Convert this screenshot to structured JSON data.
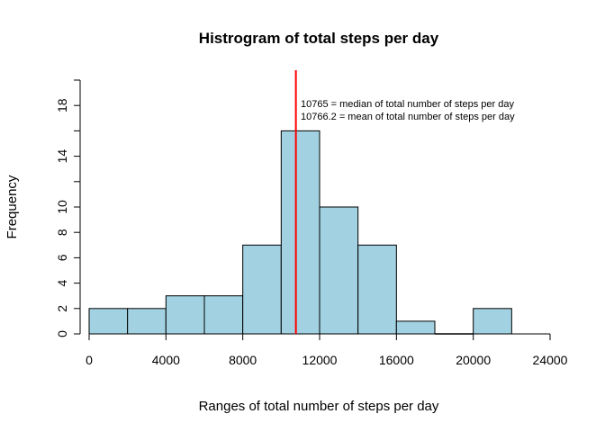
{
  "chart_data": {
    "type": "bar",
    "title": "Histrogram of total steps per day",
    "xlabel": "Ranges of total number of steps per day",
    "ylabel": "Frequency",
    "bins": [
      {
        "start": 0,
        "end": 2000,
        "count": 2
      },
      {
        "start": 2000,
        "end": 4000,
        "count": 2
      },
      {
        "start": 4000,
        "end": 6000,
        "count": 3
      },
      {
        "start": 6000,
        "end": 8000,
        "count": 3
      },
      {
        "start": 8000,
        "end": 10000,
        "count": 7
      },
      {
        "start": 10000,
        "end": 12000,
        "count": 16
      },
      {
        "start": 12000,
        "end": 14000,
        "count": 10
      },
      {
        "start": 14000,
        "end": 16000,
        "count": 7
      },
      {
        "start": 16000,
        "end": 18000,
        "count": 1
      },
      {
        "start": 18000,
        "end": 20000,
        "count": 0
      },
      {
        "start": 20000,
        "end": 22000,
        "count": 2
      }
    ],
    "xlim": [
      0,
      24000
    ],
    "ylim": [
      0,
      20
    ],
    "x_ticks": [
      0,
      4000,
      8000,
      12000,
      16000,
      20000,
      24000
    ],
    "y_ticks_labeled": [
      0,
      2,
      4,
      6,
      8,
      10,
      14,
      18
    ],
    "y_ticks_minor": [
      12,
      16,
      20
    ],
    "bar_fill": "#a2d2e2",
    "bar_stroke": "#000000",
    "reference_line": {
      "x": 10765,
      "color": "#ff0000"
    },
    "annotations": [
      "10765 = median of total number of steps per day",
      "10766.2 = mean of total number of steps per day"
    ],
    "grid": false,
    "legend": "none"
  }
}
